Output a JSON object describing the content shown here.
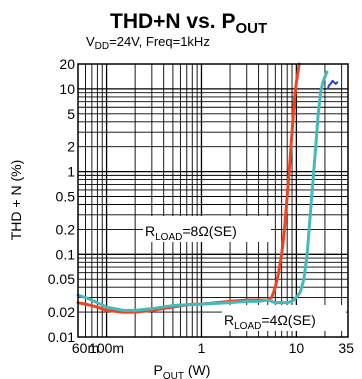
{
  "chart_data": {
    "type": "line",
    "title": {
      "main": "THD+N vs. P",
      "sub": "OUT"
    },
    "subtitle": {
      "a": "V",
      "a_sub": "DD",
      "b": "=24V, Freq=1kHz"
    },
    "xlabel": {
      "main": "P",
      "sub": "OUT",
      "rest": " (W)"
    },
    "ylabel": "THD + N (%)",
    "x_scale": "log",
    "y_scale": "log",
    "xlim": [
      0.05,
      35
    ],
    "ylim": [
      0.01,
      20
    ],
    "x_ticks": [
      {
        "value": 0.06,
        "label": "60m"
      },
      {
        "value": 0.1,
        "label": "100m"
      },
      {
        "value": 1,
        "label": "1"
      },
      {
        "value": 10,
        "label": "10"
      },
      {
        "value": 35,
        "label": "35"
      }
    ],
    "y_ticks": [
      {
        "value": 20,
        "label": "20"
      },
      {
        "value": 10,
        "label": "10"
      },
      {
        "value": 5,
        "label": "5"
      },
      {
        "value": 2,
        "label": "2"
      },
      {
        "value": 1,
        "label": "1"
      },
      {
        "value": 0.5,
        "label": "0.5"
      },
      {
        "value": 0.2,
        "label": "0.2"
      },
      {
        "value": 0.1,
        "label": "0.1"
      },
      {
        "value": 0.05,
        "label": "0.05"
      },
      {
        "value": 0.02,
        "label": "0.02"
      },
      {
        "value": 0.01,
        "label": "0.01"
      }
    ],
    "grid": true,
    "series": [
      {
        "label": {
          "main": "R",
          "sub": "LOAD",
          "rest": "=8Ω(SE)"
        },
        "color": "#ee4422",
        "points": [
          [
            0.05,
            0.026
          ],
          [
            0.06,
            0.025
          ],
          [
            0.08,
            0.023
          ],
          [
            0.1,
            0.021
          ],
          [
            0.15,
            0.02
          ],
          [
            0.2,
            0.02
          ],
          [
            0.3,
            0.021
          ],
          [
            0.5,
            0.023
          ],
          [
            0.8,
            0.025
          ],
          [
            1,
            0.025
          ],
          [
            2,
            0.027
          ],
          [
            3,
            0.028
          ],
          [
            4,
            0.028
          ],
          [
            5,
            0.028
          ],
          [
            5.5,
            0.03
          ],
          [
            6,
            0.04
          ],
          [
            6.5,
            0.06
          ],
          [
            7,
            0.1
          ],
          [
            7.5,
            0.2
          ],
          [
            8,
            0.5
          ],
          [
            8.5,
            1.2
          ],
          [
            9,
            3
          ],
          [
            9.5,
            7
          ],
          [
            10,
            12
          ],
          [
            10.7,
            20
          ]
        ]
      },
      {
        "label": {
          "main": "R",
          "sub": "LOAD",
          "rest": "=4Ω(SE)"
        },
        "color": "#44bbbb",
        "points": [
          [
            0.05,
            0.032
          ],
          [
            0.06,
            0.03
          ],
          [
            0.08,
            0.026
          ],
          [
            0.1,
            0.023
          ],
          [
            0.15,
            0.021
          ],
          [
            0.2,
            0.021
          ],
          [
            0.3,
            0.022
          ],
          [
            0.5,
            0.024
          ],
          [
            1,
            0.025
          ],
          [
            2,
            0.026
          ],
          [
            3,
            0.027
          ],
          [
            4,
            0.027
          ],
          [
            5,
            0.028
          ],
          [
            6,
            0.026
          ],
          [
            7,
            0.026
          ],
          [
            8,
            0.026
          ],
          [
            9,
            0.027
          ],
          [
            10,
            0.03
          ],
          [
            11,
            0.035
          ],
          [
            12,
            0.05
          ],
          [
            13,
            0.1
          ],
          [
            14,
            0.3
          ],
          [
            15,
            0.8
          ],
          [
            16,
            2
          ],
          [
            17,
            5
          ],
          [
            18,
            9
          ],
          [
            19,
            12
          ],
          [
            20,
            14
          ],
          [
            21,
            16
          ]
        ]
      },
      {
        "label": {
          "main": "",
          "sub": "",
          "rest": ""
        },
        "color": "#2244cc",
        "points": [
          [
            21.5,
            10
          ],
          [
            22,
            11
          ],
          [
            23,
            11.5
          ],
          [
            24,
            12.5
          ],
          [
            25,
            12
          ],
          [
            26,
            11.5
          ],
          [
            27,
            12
          ]
        ]
      }
    ]
  }
}
